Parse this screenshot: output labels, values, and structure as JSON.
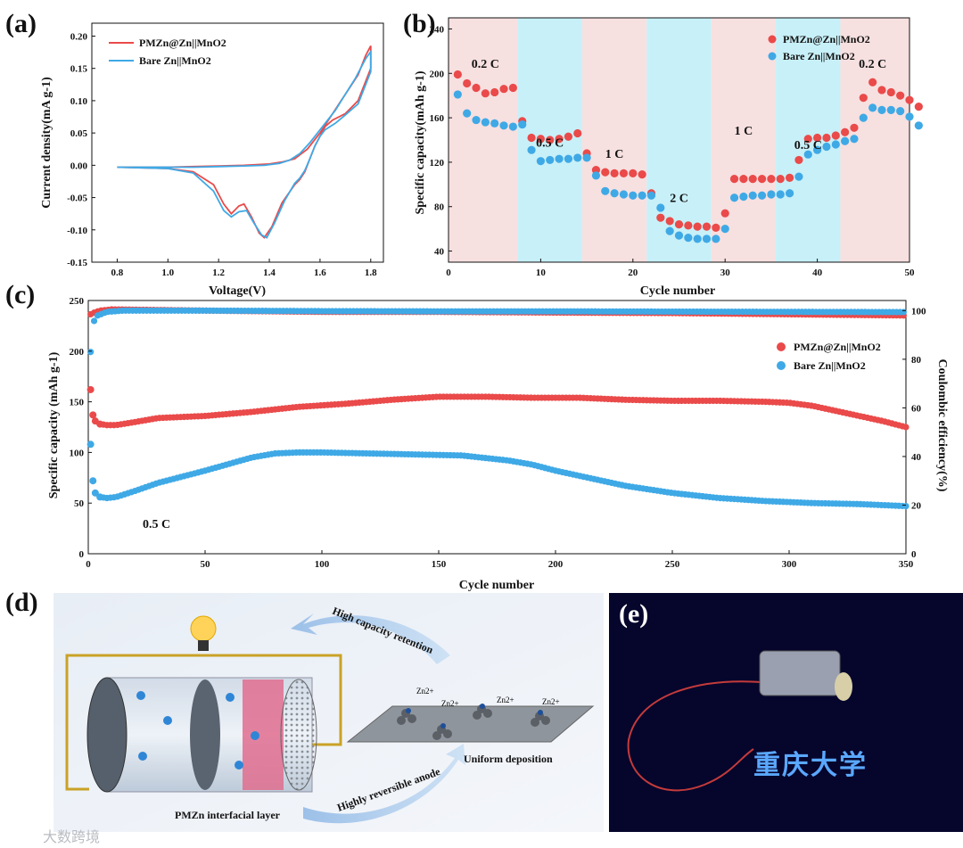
{
  "panels": {
    "a": "(a)",
    "b": "(b)",
    "c": "(c)",
    "d": "(d)",
    "e": "(e)"
  },
  "colors": {
    "red": "#ea4a4a",
    "blue": "#3fa9e6",
    "pink_band": "#f7e0e0",
    "cyan_band": "#c8f0f8"
  },
  "chart_data": [
    {
      "id": "a",
      "type": "line",
      "xlabel": "Voltage(V)",
      "ylabel": "Current density(mA g-1)",
      "xlim": [
        0.7,
        1.85
      ],
      "ylim": [
        -0.15,
        0.22
      ],
      "xticks": [
        "0.8",
        "1.0",
        "1.2",
        "1.4",
        "1.6",
        "1.8"
      ],
      "yticks": [
        "-0.15",
        "-0.10",
        "-0.05",
        "0.00",
        "0.05",
        "0.10",
        "0.15",
        "0.20"
      ],
      "series": [
        {
          "name": "PMZn@Zn||MnO2",
          "color": "#ea4a4a",
          "x": [
            0.8,
            1.0,
            1.1,
            1.18,
            1.22,
            1.25,
            1.28,
            1.3,
            1.33,
            1.36,
            1.38,
            1.41,
            1.45,
            1.5,
            1.52,
            1.54,
            1.56,
            1.58,
            1.6,
            1.62,
            1.65,
            1.7,
            1.75,
            1.8,
            1.8,
            1.78,
            1.75,
            1.7,
            1.65,
            1.6,
            1.55,
            1.5,
            1.45,
            1.4,
            1.3,
            1.2,
            1.1,
            1.0,
            0.9,
            0.8
          ],
          "y": [
            -0.003,
            -0.005,
            -0.01,
            -0.03,
            -0.06,
            -0.075,
            -0.063,
            -0.06,
            -0.08,
            -0.105,
            -0.112,
            -0.095,
            -0.058,
            -0.03,
            -0.022,
            -0.01,
            0.01,
            0.03,
            0.045,
            0.06,
            0.07,
            0.08,
            0.1,
            0.15,
            0.185,
            0.17,
            0.14,
            0.11,
            0.08,
            0.05,
            0.025,
            0.01,
            0.005,
            0.002,
            0.0,
            -0.001,
            -0.002,
            -0.003,
            -0.003,
            -0.003
          ]
        },
        {
          "name": "Bare Zn||MnO2",
          "color": "#3fa9e6",
          "x": [
            0.8,
            1.0,
            1.1,
            1.18,
            1.22,
            1.25,
            1.28,
            1.31,
            1.34,
            1.37,
            1.39,
            1.42,
            1.46,
            1.5,
            1.52,
            1.54,
            1.56,
            1.58,
            1.6,
            1.62,
            1.66,
            1.7,
            1.75,
            1.8,
            1.8,
            1.78,
            1.74,
            1.7,
            1.66,
            1.61,
            1.56,
            1.52,
            1.48,
            1.44,
            1.38,
            1.3,
            1.2,
            1.1,
            1.0,
            0.9,
            0.8
          ],
          "y": [
            -0.003,
            -0.005,
            -0.012,
            -0.04,
            -0.07,
            -0.08,
            -0.072,
            -0.07,
            -0.09,
            -0.108,
            -0.112,
            -0.09,
            -0.055,
            -0.028,
            -0.02,
            -0.008,
            0.01,
            0.03,
            0.045,
            0.055,
            0.065,
            0.078,
            0.095,
            0.145,
            0.176,
            0.165,
            0.135,
            0.11,
            0.085,
            0.06,
            0.035,
            0.018,
            0.008,
            0.003,
            0.0,
            -0.001,
            -0.002,
            -0.003,
            -0.003,
            -0.003,
            -0.003
          ]
        }
      ],
      "legend": [
        "PMZn@Zn||MnO2",
        "Bare Zn||MnO2"
      ]
    },
    {
      "id": "b",
      "type": "scatter",
      "xlabel": "Cycle number",
      "ylabel": "Specific capacity(mAh g-1)",
      "xlim": [
        0,
        50
      ],
      "ylim": [
        30,
        250
      ],
      "xticks": [
        "0",
        "10",
        "20",
        "30",
        "40",
        "50"
      ],
      "yticks": [
        "40",
        "80",
        "120",
        "160",
        "200",
        "240"
      ],
      "rates": [
        "0.2 C",
        "0.5 C",
        "1 C",
        "2 C",
        "1 C",
        "0.5 C",
        "0.2 C"
      ],
      "series": [
        {
          "name": "PMZn@Zn||MnO2",
          "color": "#ea4a4a",
          "values": [
            199,
            191,
            187,
            182,
            183,
            186,
            187,
            157,
            142,
            141,
            140,
            141,
            143,
            146,
            128,
            113,
            111,
            110,
            110,
            110,
            109,
            92,
            70,
            67,
            64,
            63,
            62,
            62,
            61,
            74,
            105,
            105,
            105,
            105,
            105,
            105,
            106,
            122,
            141,
            142,
            142,
            144,
            147,
            151,
            178,
            192,
            185,
            183,
            180,
            176,
            170
          ]
        },
        {
          "name": "Bare Zn||MnO2",
          "color": "#3fa9e6",
          "values": [
            181,
            164,
            158,
            156,
            155,
            153,
            152,
            154,
            131,
            121,
            122,
            123,
            123,
            124,
            124,
            108,
            94,
            92,
            91,
            90,
            90,
            90,
            79,
            58,
            54,
            52,
            51,
            51,
            51,
            60,
            88,
            89,
            90,
            90,
            91,
            91,
            92,
            107,
            127,
            131,
            134,
            136,
            139,
            141,
            160,
            169,
            167,
            167,
            166,
            161,
            153
          ]
        }
      ],
      "legend": [
        "PMZn@Zn||MnO2",
        "Bare Zn||MnO2"
      ]
    },
    {
      "id": "c",
      "type": "scatter",
      "xlabel": "Cycle number",
      "ylabel": "Specific capacity (mAh g-1)",
      "y2label": "Coulombic efficiency(%)",
      "xlim": [
        0,
        350
      ],
      "ylim": [
        0,
        250
      ],
      "y2lim": [
        0,
        104.17
      ],
      "xticks": [
        "0",
        "50",
        "100",
        "150",
        "200",
        "250",
        "300",
        "350"
      ],
      "yticks": [
        "0",
        "50",
        "100",
        "150",
        "200",
        "250"
      ],
      "y2ticks": [
        "0",
        "20",
        "40",
        "60",
        "80",
        "100"
      ],
      "annotation": "0.5 C",
      "series": [
        {
          "name": "PMZn@Zn||MnO2",
          "color": "#ea4a4a",
          "x": [
            1,
            2,
            3,
            5,
            8,
            12,
            20,
            30,
            50,
            70,
            90,
            110,
            130,
            150,
            170,
            190,
            210,
            230,
            250,
            270,
            290,
            300,
            310,
            320,
            330,
            340,
            350
          ],
          "y": [
            162,
            137,
            131,
            128,
            127,
            127,
            130,
            134,
            136,
            140,
            145,
            148,
            152,
            155,
            155,
            154,
            154,
            152,
            151,
            151,
            150,
            149,
            146,
            141,
            136,
            131,
            125
          ]
        },
        {
          "name": "Bare Zn||MnO2",
          "color": "#3fa9e6",
          "x": [
            1,
            2,
            3,
            5,
            8,
            12,
            20,
            30,
            50,
            70,
            80,
            90,
            100,
            120,
            140,
            160,
            180,
            190,
            200,
            210,
            220,
            230,
            250,
            270,
            290,
            310,
            330,
            350
          ],
          "y": [
            108,
            72,
            60,
            56,
            55,
            56,
            62,
            70,
            82,
            95,
            99,
            100,
            100,
            99,
            98,
            97,
            92,
            88,
            82,
            77,
            72,
            67,
            60,
            55,
            52,
            50,
            49,
            47
          ]
        },
        {
          "name": "PMZn@Zn||MnO2 CE",
          "color": "#ea4a4a",
          "x": [
            0,
            2,
            5,
            10,
            50,
            100,
            150,
            200,
            250,
            300,
            350
          ],
          "y": [
            98,
            99,
            100,
            100.5,
            100,
            99.5,
            99.5,
            99.2,
            99,
            98.5,
            98
          ]
        },
        {
          "name": "Bare Zn||MnO2 CE",
          "color": "#3fa9e6",
          "x": [
            0,
            1,
            2,
            4,
            8,
            15,
            50,
            100,
            150,
            200,
            250,
            300,
            350
          ],
          "y": [
            70,
            83,
            95,
            98,
            99.5,
            100,
            100,
            99.8,
            99.7,
            99.7,
            99.6,
            99.5,
            99.4
          ]
        }
      ],
      "legend": [
        "PMZn@Zn||MnO2",
        "Bare Zn||MnO2"
      ]
    }
  ],
  "diagram": {
    "arrow_top": "High capacity retention",
    "arrow_bottom": "Highly reversible anode",
    "deposition": "Uniform deposition",
    "layer": "PMZn interfacial layer",
    "ion": "Zn2+"
  },
  "photo": {
    "led_text": "重庆大学"
  },
  "watermark": "大数跨境"
}
